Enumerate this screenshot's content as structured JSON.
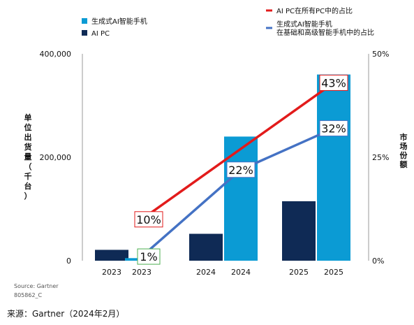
{
  "chart_data": {
    "type": "bar",
    "left_axis": {
      "label": "单位出货量（千台）",
      "ticks": [
        "0",
        "200,000",
        "400,000"
      ],
      "tick_values": [
        0,
        200000,
        400000
      ],
      "range": [
        0,
        400000
      ]
    },
    "right_axis": {
      "label": "市场份额",
      "ticks": [
        "0%",
        "25%",
        "50%"
      ],
      "tick_values": [
        0,
        25,
        50
      ],
      "range": [
        0,
        50
      ]
    },
    "x_labels": [
      "2023",
      "2023",
      "2024",
      "2024",
      "2025",
      "2025"
    ],
    "bar_series": [
      {
        "name": "AI PC",
        "color": "#0f2a55",
        "points": [
          {
            "slot": 0,
            "value": 21000
          },
          {
            "slot": 2,
            "value": 52000
          },
          {
            "slot": 4,
            "value": 115000
          }
        ]
      },
      {
        "name": "生成式AI智能手机",
        "color": "#0b9bd4",
        "points": [
          {
            "slot": 1,
            "value": 5000
          },
          {
            "slot": 3,
            "value": 240000
          },
          {
            "slot": 5,
            "value": 360000
          }
        ]
      }
    ],
    "line_series": [
      {
        "name": "AI PC在所有PC中的占比",
        "color": "#e21b1b",
        "points": [
          {
            "slot": 1,
            "value": 10
          },
          {
            "slot": 5,
            "value": 43
          }
        ]
      },
      {
        "name": "生成式AI智能手机\n在基础和高级智能手机中的占比",
        "color": "#4472c4",
        "points": [
          {
            "slot": 1,
            "value": 1
          },
          {
            "slot": 3,
            "value": 22
          },
          {
            "slot": 5,
            "value": 32
          }
        ]
      }
    ],
    "data_labels": [
      {
        "text": "10%",
        "slot": 1,
        "value": 10,
        "border": "#e21b1b"
      },
      {
        "text": "1%",
        "slot": 1,
        "value": 1,
        "border": "#4caf50"
      },
      {
        "text": "22%",
        "slot": 3,
        "value": 22,
        "border": "#4472c4"
      },
      {
        "text": "43%",
        "slot": 5,
        "value": 43,
        "border": "#e21b1b"
      },
      {
        "text": "32%",
        "slot": 5,
        "value": 32,
        "border": "#4472c4"
      }
    ],
    "legend_placement": "top"
  },
  "source_note_line1": "Source: Gartner",
  "source_note_line2": "805862_C",
  "footer_source": "来源：Gartner（2024年2月）"
}
